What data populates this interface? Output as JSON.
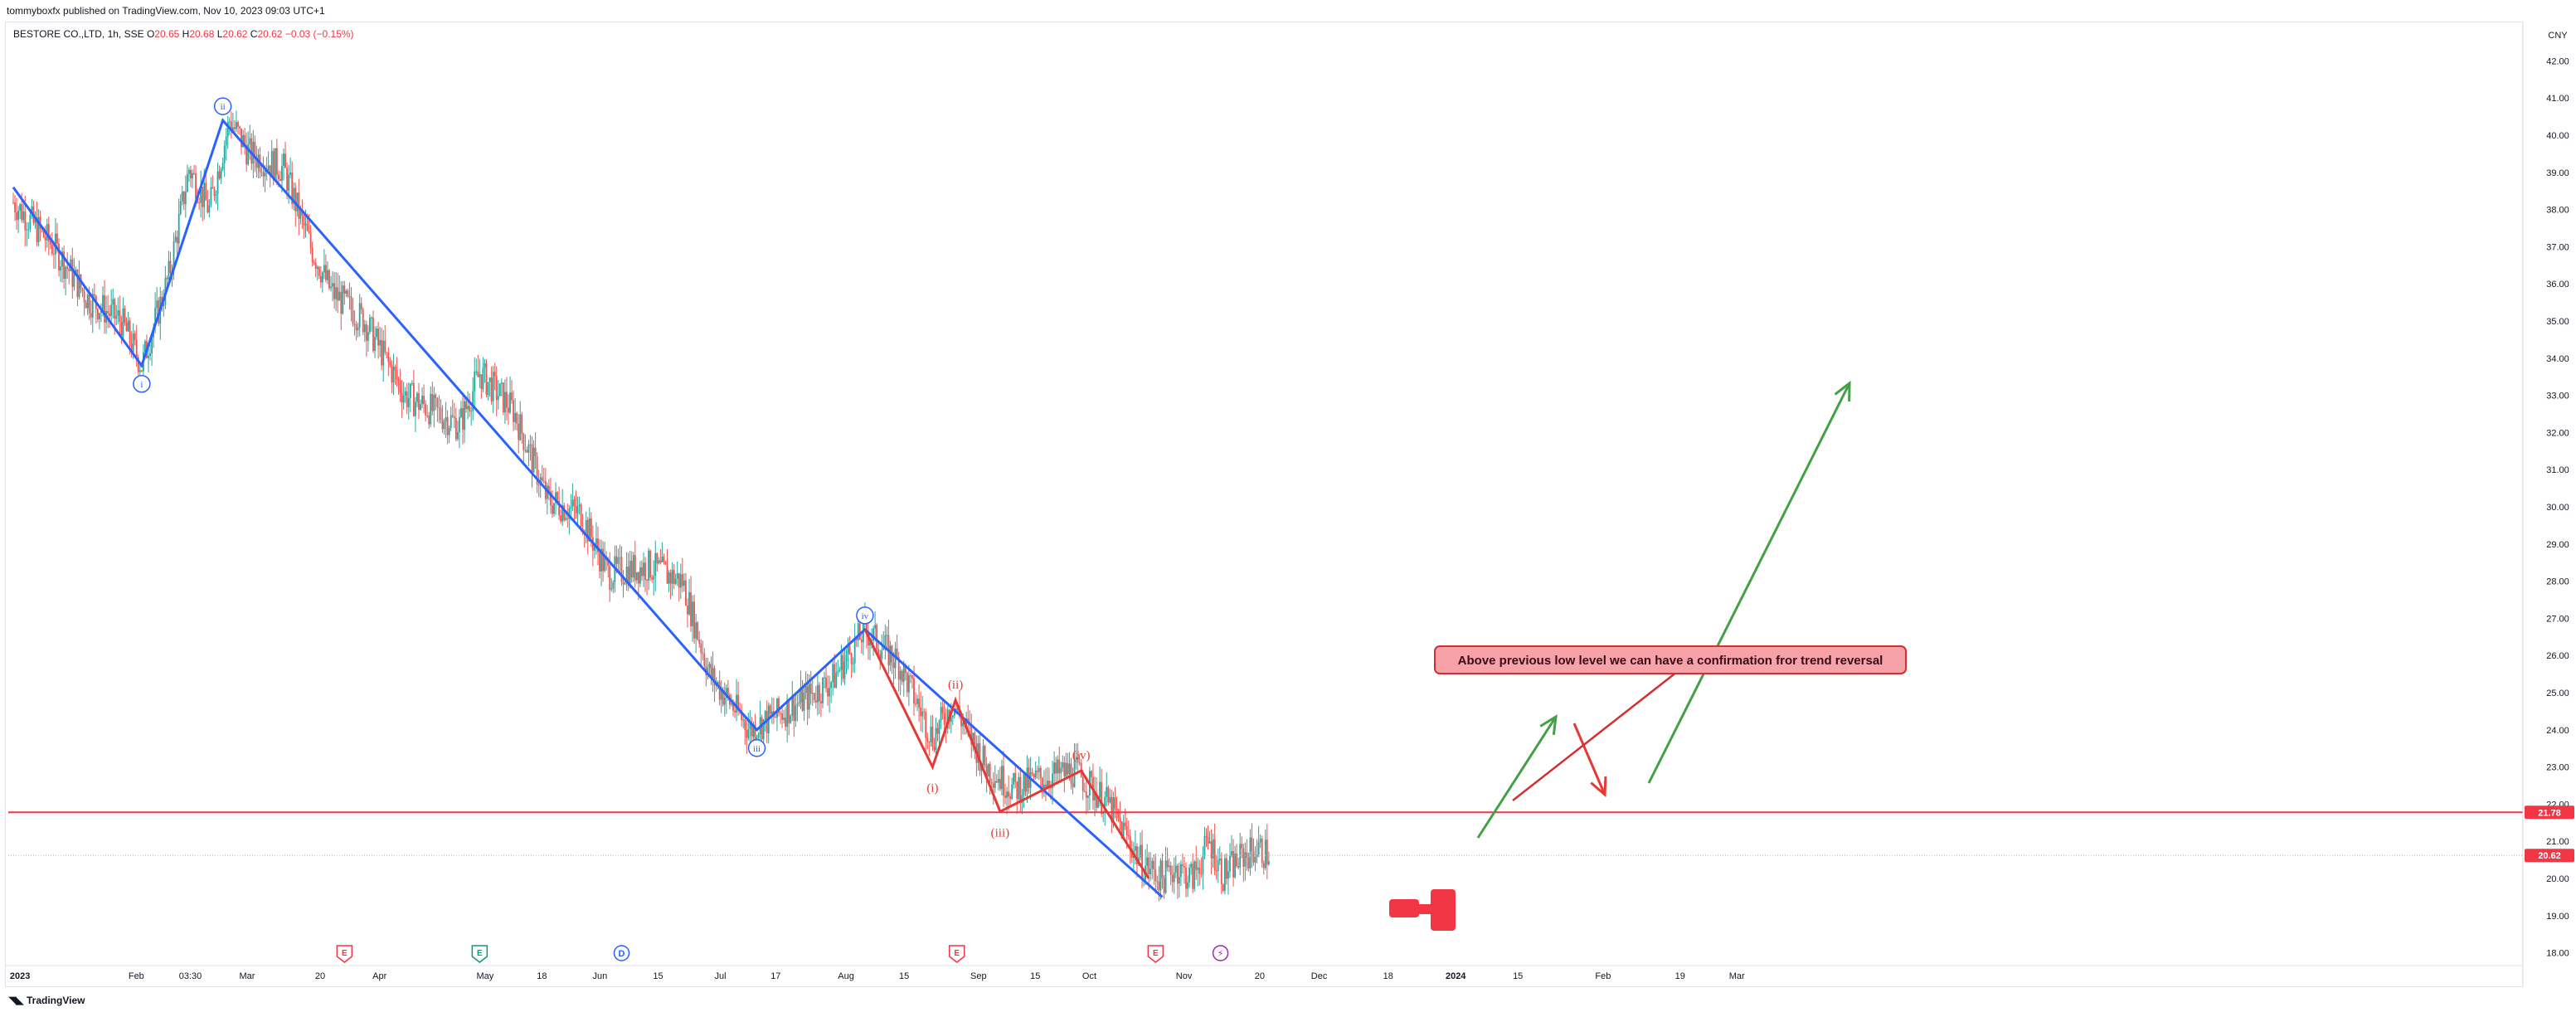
{
  "header": {
    "published": "tommyboxfx published on TradingView.com, Nov 10, 2023 09:03 UTC+1"
  },
  "legend": {
    "symbol": "BESTORE CO.,LTD, 1h, SSE",
    "open_label": "O",
    "open": "20.65",
    "high_label": "H",
    "high": "20.68",
    "low_label": "L",
    "low": "20.62",
    "close_label": "C",
    "close": "20.62",
    "change": "−0.03 (−0.15%)"
  },
  "footer": {
    "brand": "TradingView",
    "logo_icon": "tradingview-logo-icon"
  },
  "colors": {
    "up": "#26a69a",
    "down": "#ef5350",
    "wave_blue": "#2962ff",
    "wave_red": "#e53935",
    "arrow_green": "#43a047",
    "level_red": "#f23645",
    "note_fill": "#f7a1a9",
    "note_border": "#d32f2f"
  },
  "chart_data": {
    "type": "line",
    "currency": "CNY",
    "y_ticks": [
      "42.00",
      "41.00",
      "40.00",
      "39.00",
      "38.00",
      "37.00",
      "36.00",
      "35.00",
      "34.00",
      "33.00",
      "32.00",
      "31.00",
      "30.00",
      "29.00",
      "28.00",
      "27.00",
      "26.00",
      "25.00",
      "24.00",
      "23.00",
      "22.00",
      "21.00",
      "20.00",
      "19.00",
      "18.00"
    ],
    "ylim": [
      17.6,
      42.4
    ],
    "x_ticks": [
      {
        "label": "2023",
        "t": 0.05,
        "bold": true
      },
      {
        "label": "Feb",
        "t": 0.91
      },
      {
        "label": "03:30",
        "t": 1.31
      },
      {
        "label": "Mar",
        "t": 1.73
      },
      {
        "label": "20",
        "t": 2.27
      },
      {
        "label": "Apr",
        "t": 2.71
      },
      {
        "label": "May",
        "t": 3.49
      },
      {
        "label": "18",
        "t": 3.91
      },
      {
        "label": "Jun",
        "t": 4.34
      },
      {
        "label": "15",
        "t": 4.77
      },
      {
        "label": "Jul",
        "t": 5.23
      },
      {
        "label": "17",
        "t": 5.64
      },
      {
        "label": "Aug",
        "t": 6.16
      },
      {
        "label": "15",
        "t": 6.59
      },
      {
        "label": "Sep",
        "t": 7.14
      },
      {
        "label": "15",
        "t": 7.56
      },
      {
        "label": "Oct",
        "t": 7.96
      },
      {
        "label": "Nov",
        "t": 8.66
      },
      {
        "label": "20",
        "t": 9.22
      },
      {
        "label": "Dec",
        "t": 9.66
      },
      {
        "label": "18",
        "t": 10.17
      },
      {
        "label": "2024",
        "t": 10.67,
        "bold": true
      },
      {
        "label": "15",
        "t": 11.13
      },
      {
        "label": "Feb",
        "t": 11.76
      },
      {
        "label": "19",
        "t": 12.33
      },
      {
        "label": "Mar",
        "t": 12.75
      }
    ],
    "price_path": [
      [
        0,
        38.2
      ],
      [
        0.3,
        37
      ],
      [
        0.55,
        35.6
      ],
      [
        0.8,
        35
      ],
      [
        0.95,
        33.8
      ],
      [
        1.15,
        36.2
      ],
      [
        1.3,
        39.1
      ],
      [
        1.45,
        38
      ],
      [
        1.6,
        40.4
      ],
      [
        1.75,
        39.5
      ],
      [
        2.0,
        39.1
      ],
      [
        2.2,
        37
      ],
      [
        2.35,
        35.8
      ],
      [
        2.6,
        35
      ],
      [
        2.9,
        33
      ],
      [
        3.3,
        32.2
      ],
      [
        3.45,
        33.6
      ],
      [
        3.7,
        32.6
      ],
      [
        3.95,
        30.2
      ],
      [
        4.2,
        29.8
      ],
      [
        4.4,
        28.2
      ],
      [
        4.7,
        28.4
      ],
      [
        4.95,
        28.0
      ],
      [
        5.15,
        25.5
      ],
      [
        5.45,
        24.0
      ],
      [
        5.8,
        24.7
      ],
      [
        6.05,
        25.3
      ],
      [
        6.3,
        26.7
      ],
      [
        6.55,
        25.8
      ],
      [
        6.8,
        23.8
      ],
      [
        6.95,
        24.7
      ],
      [
        7.2,
        23.0
      ],
      [
        7.4,
        22.4
      ],
      [
        7.6,
        22.7
      ],
      [
        7.85,
        22.9
      ],
      [
        8.1,
        22.0
      ],
      [
        8.35,
        20.4
      ],
      [
        8.5,
        20.0
      ],
      [
        8.6,
        20.3
      ],
      [
        8.72,
        20.0
      ],
      [
        8.85,
        21.0
      ],
      [
        8.95,
        20.1
      ],
      [
        9.1,
        20.6
      ],
      [
        9.2,
        20.8
      ],
      [
        9.3,
        20.62
      ]
    ],
    "annotations": {
      "resistance_line": {
        "value": 21.78,
        "label": "21.78",
        "color": "#f23645"
      },
      "last_price": {
        "value": 20.62,
        "label": "20.62",
        "color": "#f23645"
      },
      "blue_waves": [
        {
          "t": 0.0,
          "p": 38.6
        },
        {
          "t": 0.95,
          "p": 33.8,
          "label": "i"
        },
        {
          "t": 1.55,
          "p": 40.4,
          "label": "ii"
        },
        {
          "t": 5.5,
          "p": 24.0,
          "label": "iii"
        },
        {
          "t": 6.3,
          "p": 26.7,
          "label": "iv"
        },
        {
          "t": 8.5,
          "p": 19.5
        }
      ],
      "red_waves": [
        {
          "t": 6.3,
          "p": 26.7
        },
        {
          "t": 6.8,
          "p": 23.0,
          "label": "(i)"
        },
        {
          "t": 6.97,
          "p": 24.8,
          "label": "(ii)"
        },
        {
          "t": 7.3,
          "p": 21.8,
          "label": "(iii)"
        },
        {
          "t": 7.9,
          "p": 22.9,
          "label": "(iv)"
        },
        {
          "t": 8.4,
          "p": 20.0
        }
      ],
      "note": "Above  previous low level we can have a confirmation fror trend reversal",
      "event_markers": [
        {
          "t": 2.45,
          "kind": "E",
          "color": "#f23645"
        },
        {
          "t": 3.45,
          "kind": "E",
          "color": "#089981"
        },
        {
          "t": 4.5,
          "kind": "D",
          "color": "#2962ff"
        },
        {
          "t": 6.98,
          "kind": "E",
          "color": "#f23645"
        },
        {
          "t": 8.45,
          "kind": "E",
          "color": "#f23645"
        },
        {
          "t": 8.93,
          "kind": "bolt",
          "color": "#9c27b0"
        }
      ]
    }
  }
}
